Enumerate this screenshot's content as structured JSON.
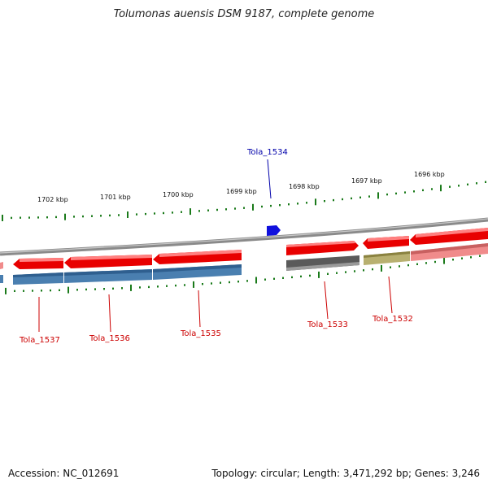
{
  "title": "Tolumonas auensis DSM 9187, complete genome",
  "accession": "Accession: NC_012691",
  "summary": "Topology: circular; Length: 3,471,292 bp; Genes: 3,246",
  "colors": {
    "cds": "#e80000",
    "blue": "#4a7fb0",
    "gray": "#5a5a5a",
    "olive": "#b8b070",
    "pink": "#f08b8b",
    "backbone": "#8a8a8a",
    "tick": "#1a7a1a",
    "label_red": "#cc0000",
    "label_blue": "#0000aa"
  },
  "kbp_labels": [
    "1702 kbp",
    "1701 kbp",
    "1700 kbp",
    "1699 kbp",
    "1698 kbp",
    "1697 kbp",
    "1696 kbp"
  ],
  "gene_labels": [
    {
      "text": "Tola_1534",
      "color": "blue"
    },
    {
      "text": "Tola_1537",
      "color": "red"
    },
    {
      "text": "Tola_1536",
      "color": "red"
    },
    {
      "text": "Tola_1535",
      "color": "red"
    },
    {
      "text": "Tola_1533",
      "color": "red"
    },
    {
      "text": "Tola_1532",
      "color": "red"
    }
  ]
}
